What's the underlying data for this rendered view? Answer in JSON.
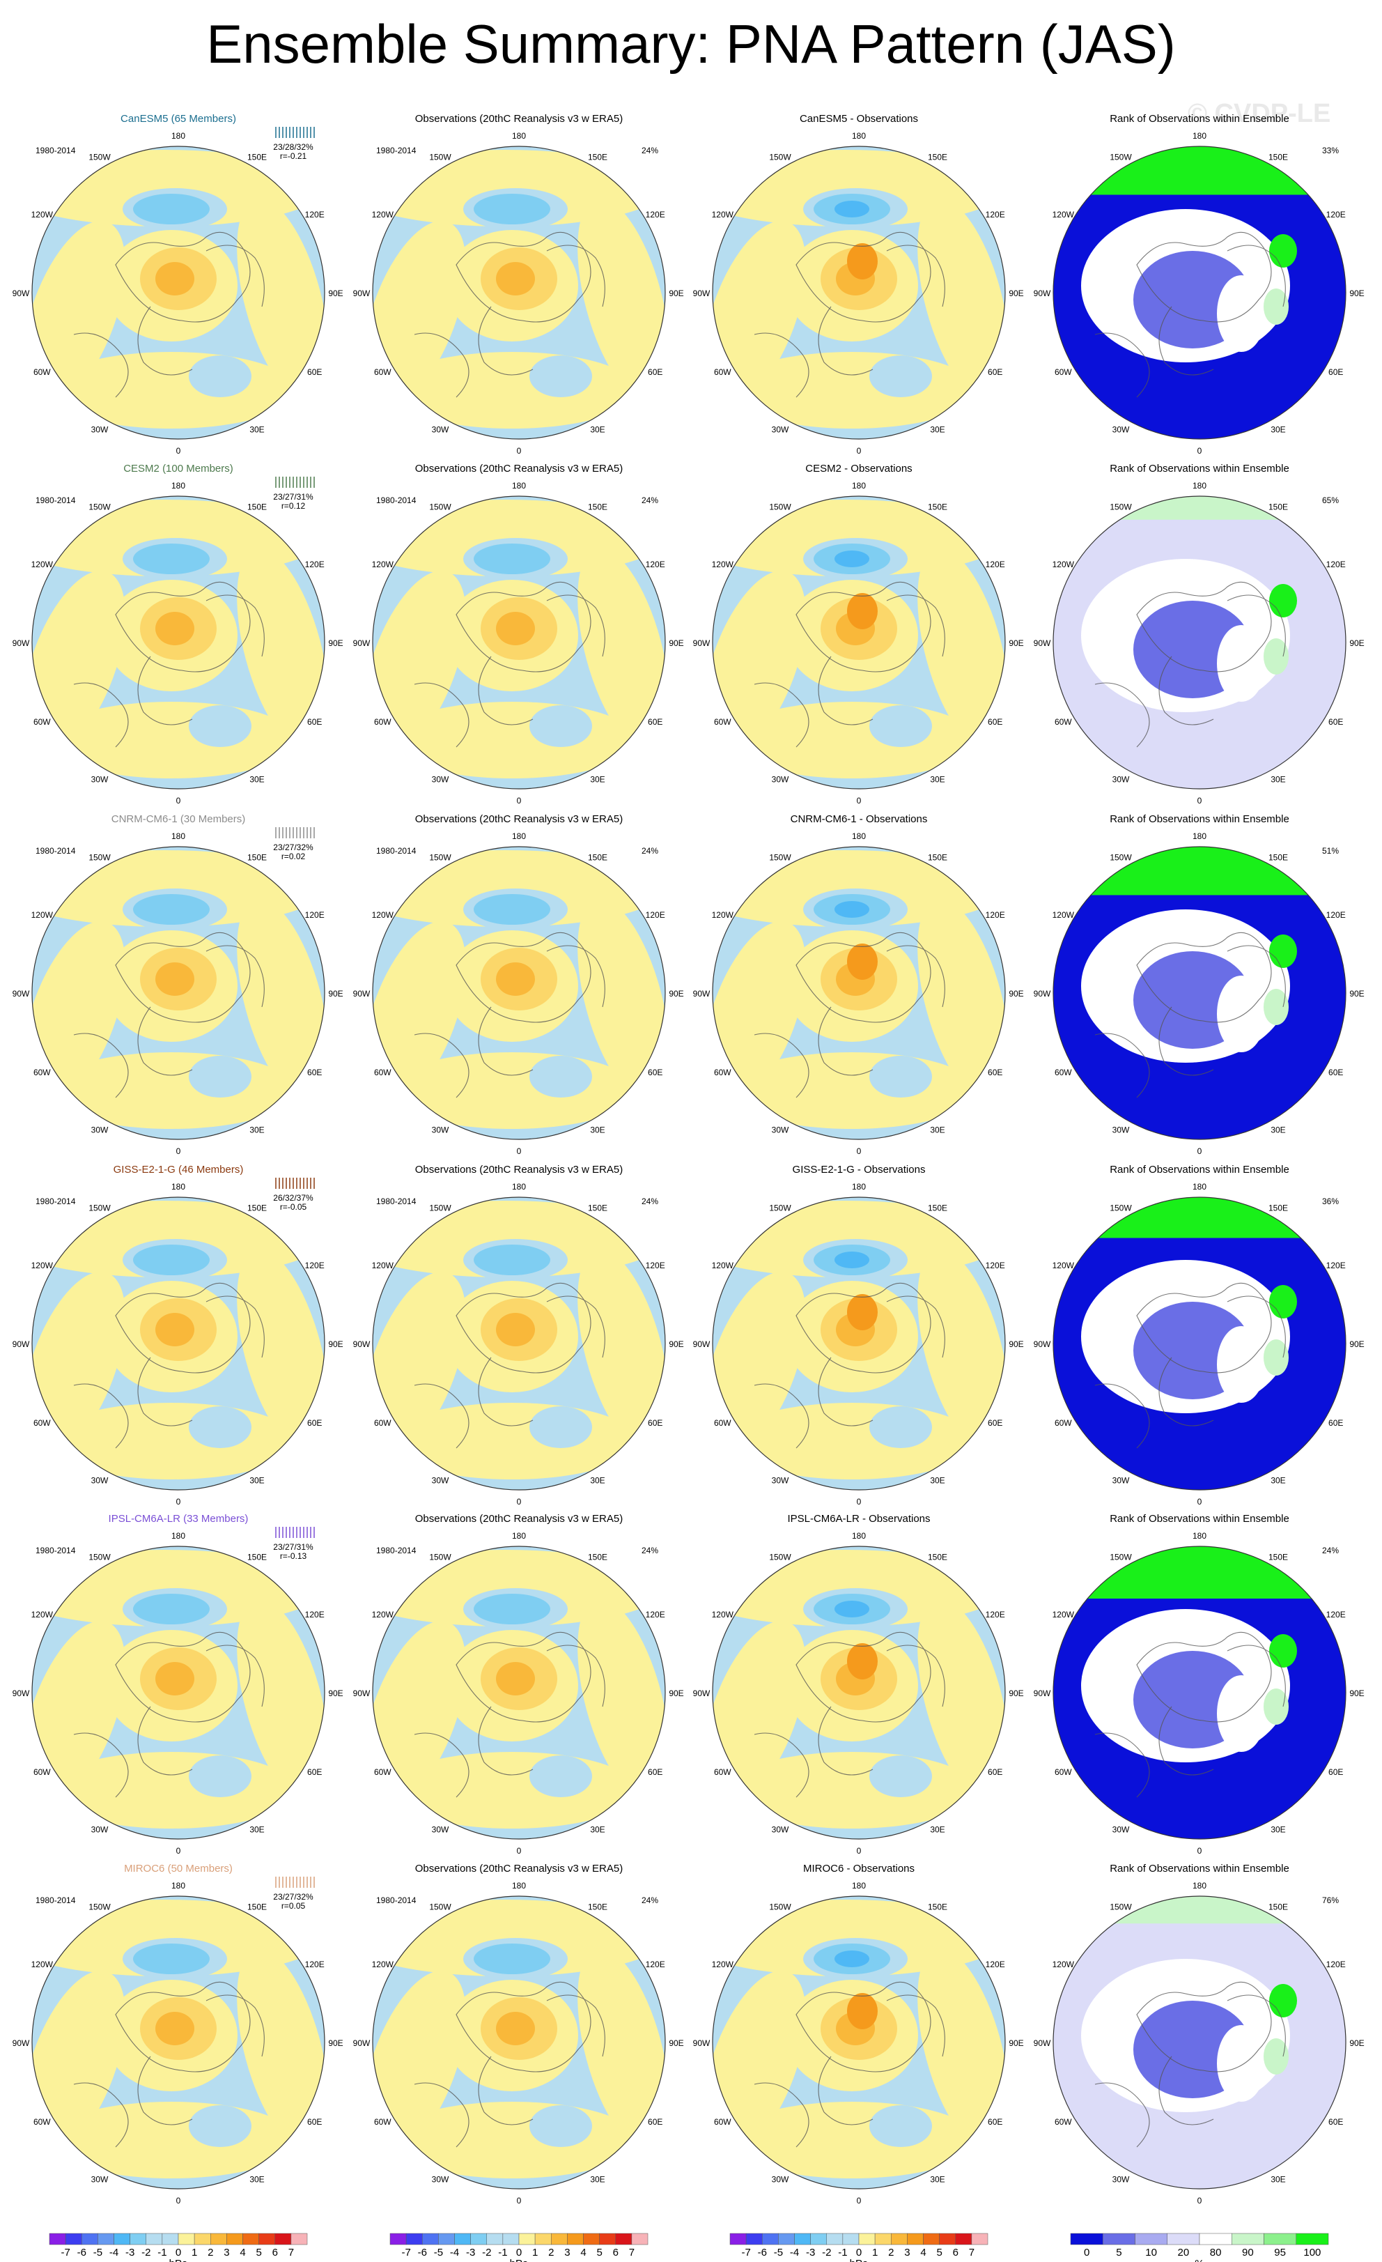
{
  "title": "Ensemble Summary: PNA Pattern (JAS)",
  "watermark": "© CVDP-LE",
  "colors": {
    "neg7": "#8a1fe6",
    "neg6": "#3d3df0",
    "neg5": "#4f73f2",
    "neg4": "#6699f0",
    "neg3": "#4fb8f5",
    "neg2": "#7fcef2",
    "neg1": "#b6ddf0",
    "pos1": "#fbf29a",
    "pos2": "#fbd76a",
    "pos3": "#f9b83a",
    "pos4": "#f59a1c",
    "pos5": "#ef6b14",
    "pos6": "#e83c17",
    "pos7": "#d9151a",
    "pos8": "#f7b3b8",
    "rank_blue": "#0a10d9",
    "rank_mid": "#6a6ee6",
    "rank_light": "#dcdcf8",
    "rank_green": "#19f019",
    "rank_lightgreen": "#c9f5c9",
    "land": "#555555"
  },
  "chart_data": {
    "type": "heatmap",
    "projection": "north-polar-stereographic",
    "lon_labels": [
      "180",
      "150E",
      "120E",
      "90E",
      "60E",
      "30E",
      "0",
      "30W",
      "60W",
      "90W",
      "120W",
      "150W"
    ],
    "colorbars": {
      "hpa": {
        "labels": [
          "-7",
          "-6",
          "-5",
          "-4",
          "-3",
          "-2",
          "-1",
          "0",
          "1",
          "2",
          "3",
          "4",
          "5",
          "6",
          "7"
        ],
        "unit": "hPa"
      },
      "rank": {
        "labels": [
          "0",
          "5",
          "10",
          "20",
          "80",
          "90",
          "95",
          "100"
        ],
        "unit": "%"
      }
    },
    "rows": [
      {
        "model": "CanESM5 (65 Members)",
        "model_color": "#1b6e8f",
        "period": "1980-2014",
        "stats": "23/28/32%",
        "r": "r=-0.21",
        "obs_title": "Observations (20thC Reanalysis v3 w ERA5)",
        "obs_pct": "24%",
        "diff_title": "CanESM5 - Observations",
        "rank_title": "Rank of Observations within Ensemble",
        "rank_pct": "33%"
      },
      {
        "model": "CESM2 (100 Members)",
        "model_color": "#4d7a4d",
        "period": "1980-2014",
        "stats": "23/27/31%",
        "r": "r=0.12",
        "obs_title": "Observations (20thC Reanalysis v3 w ERA5)",
        "obs_pct": "24%",
        "diff_title": "CESM2 - Observations",
        "rank_title": "Rank of Observations within Ensemble",
        "rank_pct": "65%"
      },
      {
        "model": "CNRM-CM6-1 (30 Members)",
        "model_color": "#8c8c8c",
        "period": "1980-2014",
        "stats": "23/27/32%",
        "r": "r=0.02",
        "obs_title": "Observations (20thC Reanalysis v3 w ERA5)",
        "obs_pct": "24%",
        "diff_title": "CNRM-CM6-1 - Observations",
        "rank_title": "Rank of Observations within Ensemble",
        "rank_pct": "51%"
      },
      {
        "model": "GISS-E2-1-G (46 Members)",
        "model_color": "#8b3a10",
        "period": "1980-2014",
        "stats": "26/32/37%",
        "r": "r=-0.05",
        "obs_title": "Observations (20thC Reanalysis v3 w ERA5)",
        "obs_pct": "24%",
        "diff_title": "GISS-E2-1-G - Observations",
        "rank_title": "Rank of Observations within Ensemble",
        "rank_pct": "36%"
      },
      {
        "model": "IPSL-CM6A-LR (33 Members)",
        "model_color": "#7a4fd6",
        "period": "1980-2014",
        "stats": "23/27/31%",
        "r": "r=-0.13",
        "obs_title": "Observations (20thC Reanalysis v3 w ERA5)",
        "obs_pct": "24%",
        "diff_title": "IPSL-CM6A-LR - Observations",
        "rank_title": "Rank of Observations within Ensemble",
        "rank_pct": "24%"
      },
      {
        "model": "MIROC6 (50 Members)",
        "model_color": "#d9a07a",
        "period": "1980-2014",
        "stats": "23/27/32%",
        "r": "r=0.05",
        "obs_title": "Observations (20thC Reanalysis v3 w ERA5)",
        "obs_pct": "24%",
        "diff_title": "MIROC6 - Observations",
        "rank_title": "Rank of Observations within Ensemble",
        "rank_pct": "76%"
      }
    ]
  }
}
